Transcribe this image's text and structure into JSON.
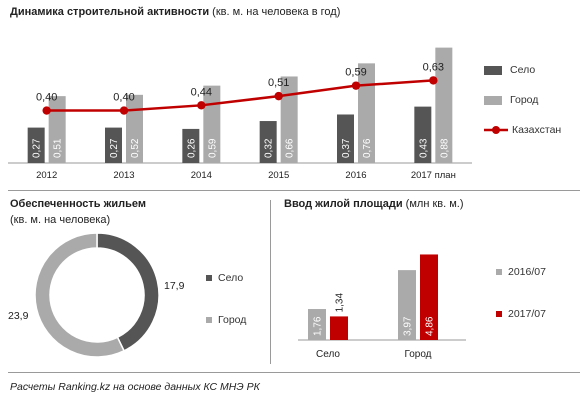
{
  "colors": {
    "selo": "#555555",
    "gorod": "#aaaaaa",
    "kz": "#c00000",
    "d2016": "#aaaaaa",
    "d2017": "#c00000"
  },
  "chart_data": [
    {
      "type": "bar",
      "title": "Динамика строительной активности",
      "subtitle": "(кв. м. на человека в год)",
      "categories": [
        "2012",
        "2013",
        "2014",
        "2015",
        "2016",
        "2017 план"
      ],
      "series": [
        {
          "name": "Село",
          "type": "bar",
          "values": [
            0.27,
            0.27,
            0.26,
            0.32,
            0.37,
            0.43
          ],
          "labels": [
            "0,27",
            "0,27",
            "0,26",
            "0,32",
            "0,37",
            "0,43"
          ]
        },
        {
          "name": "Город",
          "type": "bar",
          "values": [
            0.51,
            0.52,
            0.59,
            0.66,
            0.76,
            0.88
          ],
          "labels": [
            "0,51",
            "0,52",
            "0,59",
            "0,66",
            "0,76",
            "0,88"
          ]
        },
        {
          "name": "Казахстан",
          "type": "line",
          "values": [
            0.4,
            0.4,
            0.44,
            0.51,
            0.59,
            0.63
          ],
          "labels": [
            "0,40",
            "0,40",
            "0,44",
            "0,51",
            "0,59",
            "0,63"
          ]
        }
      ],
      "ylim": [
        0,
        0.9
      ]
    },
    {
      "type": "pie",
      "title": "Обеспеченность жильем",
      "subtitle": "(кв. м. на человека)",
      "categories": [
        "Село",
        "Город"
      ],
      "values": [
        17.9,
        23.9
      ],
      "labels": [
        "17,9",
        "23,9"
      ]
    },
    {
      "type": "bar",
      "title": "Ввод жилой площади",
      "subtitle": "(млн кв. м.)",
      "categories": [
        "Село",
        "Город"
      ],
      "series": [
        {
          "name": "2016/07",
          "values": [
            1.76,
            3.97
          ],
          "labels": [
            "1,76",
            "3,97"
          ]
        },
        {
          "name": "2017/07",
          "values": [
            1.34,
            4.86
          ],
          "labels": [
            "1,34",
            "4,86"
          ]
        }
      ],
      "ylim": [
        0,
        5
      ]
    }
  ],
  "footer": "Расчеты Ranking.kz на основе данных КС МНЭ РК"
}
